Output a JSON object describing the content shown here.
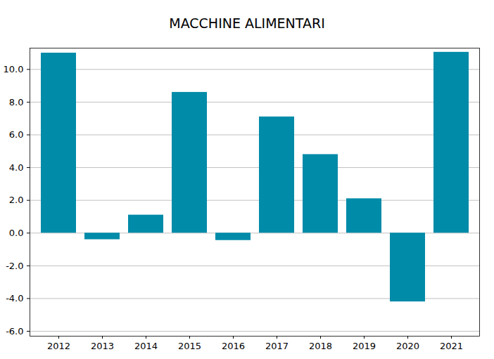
{
  "chart_data": {
    "type": "bar",
    "title": "MACCHINE ALIMENTARI",
    "categories": [
      "2012",
      "2013",
      "2014",
      "2015",
      "2016",
      "2017",
      "2018",
      "2019",
      "2020",
      "2021"
    ],
    "values": [
      11.0,
      -0.4,
      1.1,
      8.6,
      -0.45,
      7.1,
      4.8,
      2.1,
      -4.2,
      11.05
    ],
    "color": "#008ba9",
    "ylim": [
      -6.3,
      11.3
    ],
    "yticks": [
      {
        "value": -6,
        "label": "-6.0"
      },
      {
        "value": -4,
        "label": "-4.0"
      },
      {
        "value": -2,
        "label": "-2.0"
      },
      {
        "value": 0,
        "label": "0.0"
      },
      {
        "value": 2,
        "label": "2.0"
      },
      {
        "value": 4,
        "label": "4.0"
      },
      {
        "value": 6,
        "label": "6.0"
      },
      {
        "value": 8,
        "label": "8.0"
      },
      {
        "value": 10,
        "label": "10.0"
      }
    ],
    "grid": true
  }
}
